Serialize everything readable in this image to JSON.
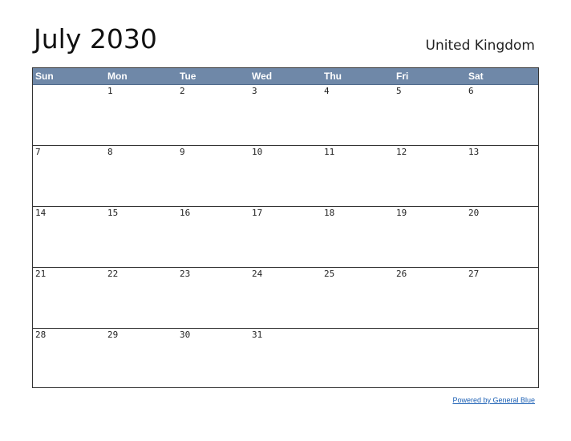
{
  "header": {
    "title": "July 2030",
    "country": "United Kingdom"
  },
  "calendar": {
    "weekdays": [
      "Sun",
      "Mon",
      "Tue",
      "Wed",
      "Thu",
      "Fri",
      "Sat"
    ],
    "weeks": [
      [
        "",
        "1",
        "2",
        "3",
        "4",
        "5",
        "6"
      ],
      [
        "7",
        "8",
        "9",
        "10",
        "11",
        "12",
        "13"
      ],
      [
        "14",
        "15",
        "16",
        "17",
        "18",
        "19",
        "20"
      ],
      [
        "21",
        "22",
        "23",
        "24",
        "25",
        "26",
        "27"
      ],
      [
        "28",
        "29",
        "30",
        "31",
        "",
        "",
        ""
      ]
    ],
    "header_color": "#6f88a8"
  },
  "footer": {
    "link_text": "Powered by General Blue",
    "link_color": "#1a5fb4"
  }
}
